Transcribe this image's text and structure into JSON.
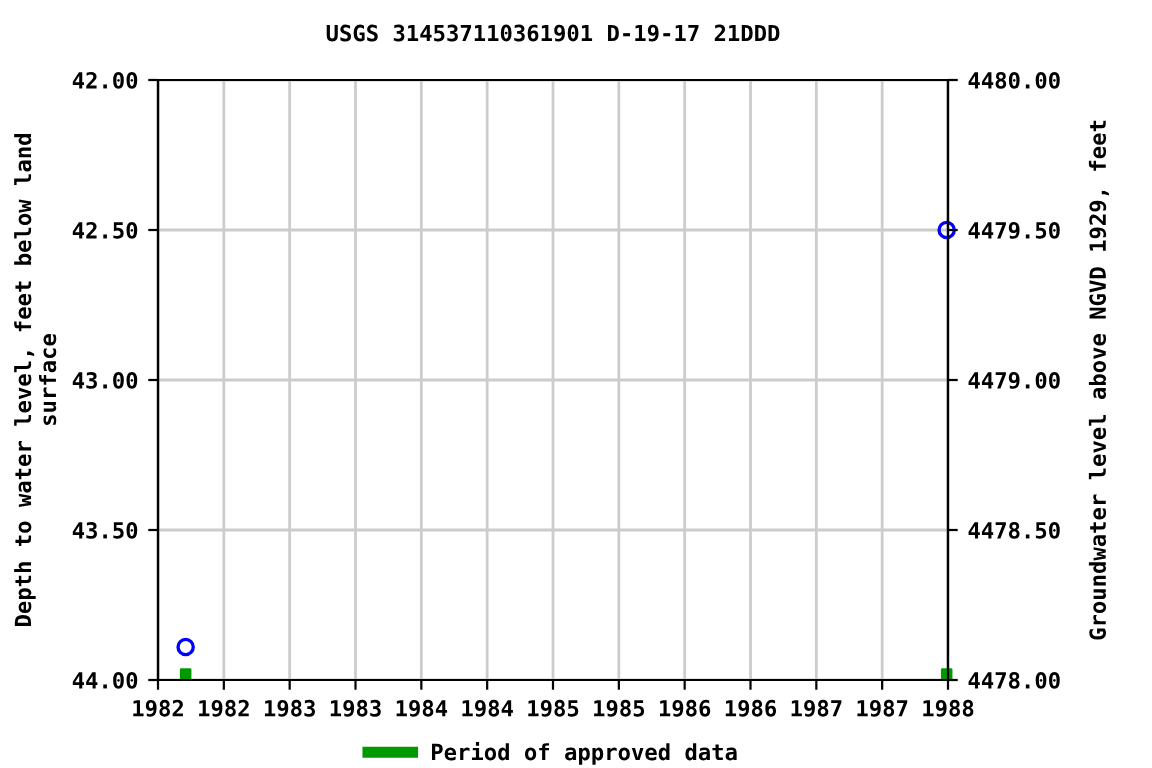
{
  "chart_data": {
    "type": "scatter",
    "title": "USGS 314537110361901 D-19-17 21DDD",
    "ylabel": "Depth to water level, feet below land\nsurface",
    "y2label": "Groundwater level above NGVD 1929, feet",
    "x": [
      1982.21,
      1987.99
    ],
    "series": [
      {
        "color": "#0000ff",
        "marker": "circle",
        "values": [
          43.89,
          42.5
        ]
      },
      {
        "name": "Period of approved data",
        "color": "#009900",
        "marker": "square",
        "values": [
          43.98,
          43.98
        ]
      }
    ],
    "xlim": [
      1982.0,
      1988.0
    ],
    "xticks": [
      {
        "value": 1982.0,
        "label": "1982"
      },
      {
        "value": 1982.5,
        "label": "1982"
      },
      {
        "value": 1983.0,
        "label": "1983"
      },
      {
        "value": 1983.5,
        "label": "1983"
      },
      {
        "value": 1984.0,
        "label": "1984"
      },
      {
        "value": 1984.5,
        "label": "1984"
      },
      {
        "value": 1985.0,
        "label": "1985"
      },
      {
        "value": 1985.5,
        "label": "1985"
      },
      {
        "value": 1986.0,
        "label": "1986"
      },
      {
        "value": 1986.5,
        "label": "1986"
      },
      {
        "value": 1987.0,
        "label": "1987"
      },
      {
        "value": 1987.5,
        "label": "1987"
      },
      {
        "value": 1988.0,
        "label": "1988"
      }
    ],
    "ylim": [
      44.0,
      42.0
    ],
    "yticks": [
      {
        "value": 42.0,
        "label": "42.00"
      },
      {
        "value": 42.5,
        "label": "42.50"
      },
      {
        "value": 43.0,
        "label": "43.00"
      },
      {
        "value": 43.5,
        "label": "43.50"
      },
      {
        "value": 44.0,
        "label": "44.00"
      }
    ],
    "y2lim": [
      4478.0,
      4480.0
    ],
    "y2ticks": [
      {
        "value": 4478.0,
        "label": "4478.00"
      },
      {
        "value": 4478.5,
        "label": "4478.50"
      },
      {
        "value": 4479.0,
        "label": "4479.00"
      },
      {
        "value": 4479.5,
        "label": "4479.50"
      },
      {
        "value": 4480.0,
        "label": "4480.00"
      }
    ],
    "grid": true,
    "legend": "bottom"
  }
}
